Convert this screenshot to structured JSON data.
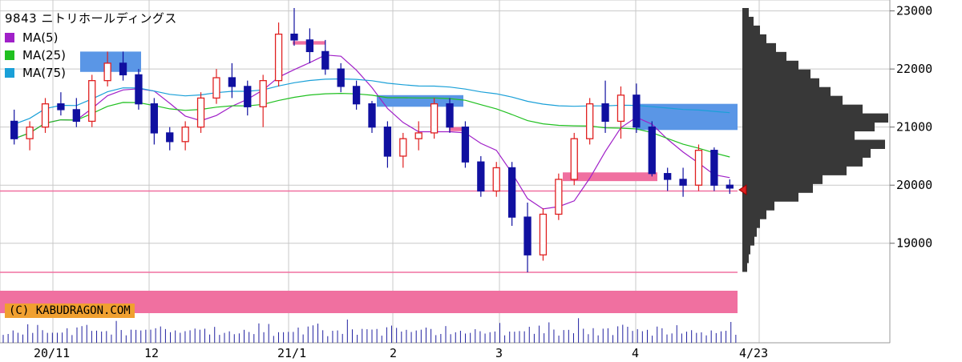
{
  "chart_data": {
    "type": "candlestick",
    "title": "9843 ニトリホールディングス",
    "legend": [
      {
        "name": "MA(5)",
        "color": "#a020c8"
      },
      {
        "name": "MA(25)",
        "color": "#20c020"
      },
      {
        "name": "MA(75)",
        "color": "#1aa0d8"
      }
    ],
    "y_ticks": [
      19000,
      20000,
      21000,
      22000,
      23000
    ],
    "ylim": [
      18500,
      23050
    ],
    "x_labels": [
      "20/11",
      "12",
      "21/1",
      "2",
      "3",
      "4",
      "4/23"
    ],
    "current_price_line": 19900,
    "credit": "(C) KABUDRAGON.COM",
    "colors": {
      "up": "#e02020",
      "down": "#1010a0",
      "support": "#5a96e6",
      "resistance": "#f070a0",
      "profile": "#383838",
      "grid": "#c8c8c8"
    },
    "ohlc_sample": [
      [
        21100,
        21300,
        20700,
        20800
      ],
      [
        20800,
        21100,
        20600,
        21000
      ],
      [
        21000,
        21500,
        20900,
        21400
      ],
      [
        21400,
        21600,
        21200,
        21300
      ],
      [
        21300,
        21500,
        21000,
        21100
      ],
      [
        21100,
        21900,
        21000,
        21800
      ],
      [
        21800,
        22300,
        21700,
        22100
      ],
      [
        22100,
        22300,
        21800,
        21900
      ],
      [
        21900,
        22000,
        21300,
        21400
      ],
      [
        21400,
        21500,
        20700,
        20900
      ],
      [
        20900,
        21000,
        20600,
        20750
      ],
      [
        20750,
        21100,
        20600,
        21000
      ],
      [
        21000,
        21600,
        20900,
        21500
      ],
      [
        21500,
        22000,
        21400,
        21850
      ],
      [
        21850,
        22100,
        21500,
        21700
      ],
      [
        21700,
        21800,
        21200,
        21350
      ],
      [
        21350,
        21900,
        21000,
        21800
      ],
      [
        21800,
        22800,
        21700,
        22600
      ],
      [
        22600,
        23050,
        22400,
        22500
      ],
      [
        22500,
        22700,
        22100,
        22300
      ],
      [
        22300,
        22500,
        21900,
        22000
      ],
      [
        22000,
        22100,
        21600,
        21700
      ],
      [
        21700,
        21800,
        21300,
        21400
      ],
      [
        21400,
        21450,
        20900,
        21000
      ],
      [
        21000,
        21100,
        20300,
        20500
      ],
      [
        20500,
        20900,
        20300,
        20800
      ],
      [
        20800,
        21100,
        20600,
        20900
      ],
      [
        20900,
        21500,
        20800,
        21400
      ],
      [
        21400,
        21500,
        20900,
        21000
      ],
      [
        21000,
        21100,
        20300,
        20400
      ],
      [
        20400,
        20500,
        19800,
        19900
      ],
      [
        19900,
        20400,
        19800,
        20300
      ],
      [
        20300,
        20400,
        19300,
        19450
      ],
      [
        19450,
        19700,
        18500,
        18800
      ],
      [
        18800,
        19600,
        18700,
        19500
      ],
      [
        19500,
        20200,
        19400,
        20100
      ],
      [
        20100,
        20900,
        20000,
        20800
      ],
      [
        20800,
        21500,
        20700,
        21400
      ],
      [
        21400,
        21800,
        20900,
        21100
      ],
      [
        21100,
        21700,
        20800,
        21550
      ],
      [
        21550,
        21750,
        20900,
        21000
      ],
      [
        21000,
        21100,
        20150,
        20200
      ],
      [
        20200,
        20300,
        19900,
        20100
      ],
      [
        20100,
        20300,
        19800,
        20000
      ],
      [
        20000,
        20700,
        19900,
        20600
      ],
      [
        20600,
        20650,
        19900,
        20000
      ],
      [
        20000,
        20100,
        19850,
        19950
      ]
    ],
    "volume_sample": [
      30,
      25,
      28,
      35,
      22,
      40,
      32,
      45,
      26,
      30,
      24,
      38,
      29,
      33,
      27,
      41,
      36,
      58,
      30,
      25,
      34,
      28,
      31,
      62,
      29,
      26,
      35,
      28,
      40,
      33,
      27,
      44,
      39,
      52,
      30,
      28,
      35,
      31,
      27,
      46,
      33,
      29,
      25,
      38,
      30,
      28,
      26
    ],
    "volume_profile_sample": [
      8,
      14,
      22,
      30,
      42,
      55,
      70,
      85,
      96,
      110,
      125,
      150,
      182,
      165,
      140,
      178,
      160,
      150,
      130,
      100,
      88,
      70,
      40,
      30,
      22,
      18,
      15,
      10,
      8,
      6
    ]
  }
}
